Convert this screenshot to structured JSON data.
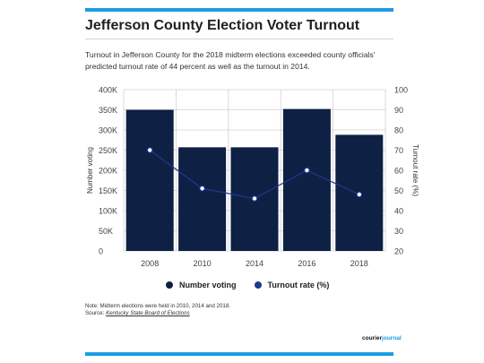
{
  "header": {
    "title": "Jefferson County Election Voter Turnout",
    "subtitle": "Turnout in Jefferson County for the 2018 midterm elections exceeded county officials' predicted turnout rate of 44 percent as well as the turnout in 2014."
  },
  "chart_data": {
    "type": "bar",
    "categories": [
      "2008",
      "2010",
      "2014",
      "2016",
      "2018"
    ],
    "series": [
      {
        "name": "Number voting",
        "type": "bar",
        "axis": "left",
        "values": [
          350000,
          257000,
          257000,
          352000,
          288000
        ]
      },
      {
        "name": "Turnout rate (%)",
        "type": "line",
        "axis": "right",
        "values": [
          70,
          51,
          46,
          60,
          48
        ]
      }
    ],
    "ylabel": "Number voting",
    "y2label": "Turnout rate (%)",
    "ylim": [
      0,
      400000
    ],
    "y2lim": [
      20,
      100
    ],
    "yticks": [
      "0",
      "50K",
      "100K",
      "150K",
      "200K",
      "250K",
      "300K",
      "350K",
      "400K"
    ],
    "y2ticks": [
      "20",
      "30",
      "40",
      "50",
      "60",
      "70",
      "80",
      "90",
      "100"
    ],
    "grid": true,
    "legend_position": "bottom",
    "colors": {
      "bar": "#0f2045",
      "line": "#1a3a8f",
      "marker_fill": "#ffffff"
    }
  },
  "legend": {
    "items": [
      {
        "label": "Number voting",
        "color": "#0f2045"
      },
      {
        "label": "Turnout rate (%)",
        "color": "#1a3a8f"
      }
    ]
  },
  "footer": {
    "note": "Note: Midterm elections were held in 2010, 2014 and 2018.",
    "source_prefix": "Source:",
    "source_link": "Kentucky State Board of Elections",
    "logo_part1": "courier",
    "logo_part2": "journal"
  },
  "colors": {
    "accent": "#1a9ce6",
    "text": "#1f1f1f"
  }
}
